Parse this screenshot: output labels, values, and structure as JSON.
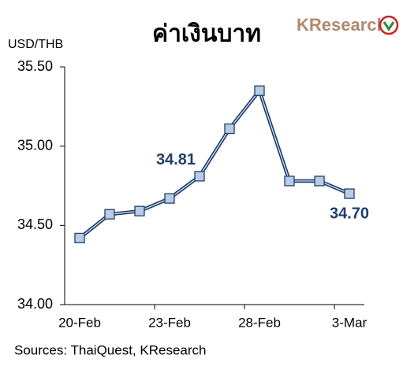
{
  "chart_data": {
    "type": "line",
    "title": "ค่าเงินบาท",
    "logo": "KResearch",
    "y_label": "USD/THB",
    "source": "Sources: ThaiQuest, KResearch",
    "categories": [
      "20-Feb",
      null,
      null,
      "23-Feb",
      null,
      null,
      "28-Feb",
      null,
      null,
      "3-Mar"
    ],
    "series": [
      {
        "color": "#1f3f6e",
        "marker_color": "#b8cce4",
        "values": [
          34.42,
          34.57,
          34.59,
          34.67,
          34.81,
          35.11,
          35.35,
          34.78,
          34.78,
          34.7
        ],
        "value_labels": [
          null,
          null,
          null,
          null,
          "34.81",
          null,
          null,
          null,
          null,
          "34.70"
        ]
      }
    ],
    "ylim": [
      34,
      35.5
    ],
    "yticks": [
      {
        "value": 34,
        "label": "34.00"
      },
      {
        "value": 34.5,
        "label": "34.50"
      },
      {
        "value": 35,
        "label": "35.00"
      },
      {
        "value": 35.5,
        "label": "35.50"
      }
    ]
  }
}
